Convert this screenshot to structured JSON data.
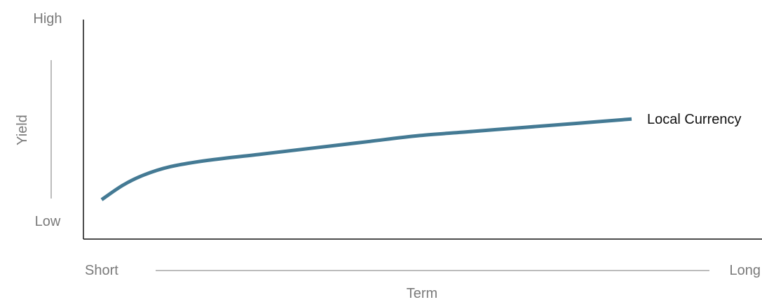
{
  "chart_data": {
    "type": "line",
    "title": "",
    "xlabel": "Term",
    "ylabel": "Yield",
    "x_tick_labels": [
      "Short",
      "Long"
    ],
    "y_tick_labels": [
      "Low",
      "High"
    ],
    "xlim": [
      0,
      1
    ],
    "ylim": [
      0,
      1
    ],
    "grid": false,
    "series": [
      {
        "name": "Local Currency",
        "color": "#447a94",
        "x": [
          0.0,
          0.04,
          0.08,
          0.13,
          0.2,
          0.3,
          0.4,
          0.5,
          0.6,
          0.7,
          0.8,
          0.9,
          1.0
        ],
        "y": [
          0.17,
          0.24,
          0.29,
          0.33,
          0.36,
          0.39,
          0.42,
          0.45,
          0.48,
          0.5,
          0.52,
          0.54,
          0.56
        ]
      }
    ]
  }
}
